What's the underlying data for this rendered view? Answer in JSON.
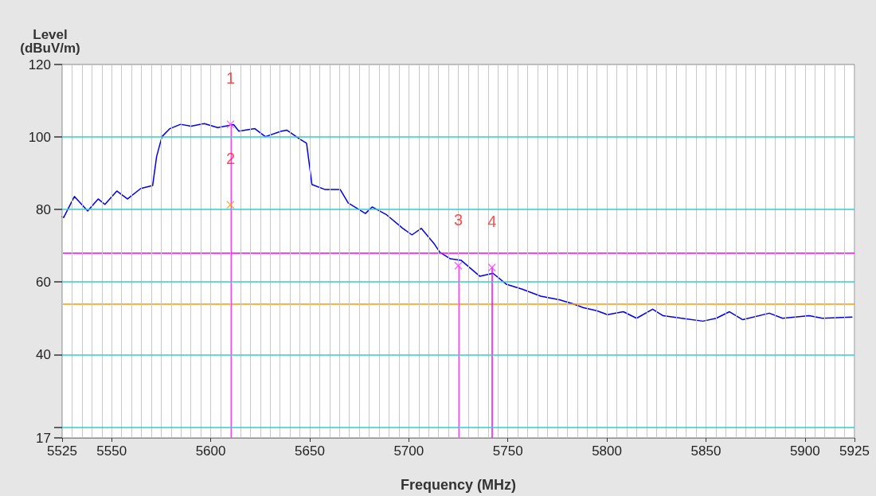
{
  "chart_data": {
    "type": "line",
    "xlabel": "Frequency (MHz)",
    "ylabel": "Level (dBuV/m)",
    "xlim": [
      5525,
      5925
    ],
    "xticks": [
      5525,
      {
        "value": 5530,
        "label": null
      },
      {
        "value": 5535,
        "label": null
      },
      {
        "value": 5540,
        "label": null
      },
      {
        "value": 5545,
        "label": null
      },
      5550,
      {
        "value": 5555,
        "label": null
      },
      {
        "value": 5560,
        "label": null
      },
      {
        "value": 5565,
        "label": null
      },
      {
        "value": 5570,
        "label": null
      },
      {
        "value": 5575,
        "label": null
      },
      {
        "value": 5580,
        "label": null
      },
      {
        "value": 5585,
        "label": null
      },
      {
        "value": 5590,
        "label": null
      },
      {
        "value": 5595,
        "label": null
      },
      5600,
      {
        "value": 5605,
        "label": null
      },
      {
        "value": 5610,
        "label": null
      },
      {
        "value": 5615,
        "label": null
      },
      {
        "value": 5620,
        "label": null
      },
      {
        "value": 5625,
        "label": null
      },
      {
        "value": 5630,
        "label": null
      },
      {
        "value": 5635,
        "label": null
      },
      {
        "value": 5640,
        "label": null
      },
      {
        "value": 5645,
        "label": null
      },
      5650,
      {
        "value": 5655,
        "label": null
      },
      {
        "value": 5660,
        "label": null
      },
      {
        "value": 5665,
        "label": null
      },
      {
        "value": 5670,
        "label": null
      },
      {
        "value": 5675,
        "label": null
      },
      {
        "value": 5680,
        "label": null
      },
      {
        "value": 5685,
        "label": null
      },
      {
        "value": 5690,
        "label": null
      },
      {
        "value": 5695,
        "label": null
      },
      5700,
      {
        "value": 5705,
        "label": null
      },
      {
        "value": 5710,
        "label": null
      },
      {
        "value": 5715,
        "label": null
      },
      {
        "value": 5720,
        "label": null
      },
      {
        "value": 5725,
        "label": null
      },
      {
        "value": 5730,
        "label": null
      },
      {
        "value": 5735,
        "label": null
      },
      {
        "value": 5740,
        "label": null
      },
      {
        "value": 5745,
        "label": null
      },
      5750,
      {
        "value": 5755,
        "label": null
      },
      {
        "value": 5760,
        "label": null
      },
      {
        "value": 5765,
        "label": null
      },
      {
        "value": 5770,
        "label": null
      },
      {
        "value": 5775,
        "label": null
      },
      {
        "value": 5780,
        "label": null
      },
      {
        "value": 5785,
        "label": null
      },
      {
        "value": 5790,
        "label": null
      },
      {
        "value": 5795,
        "label": null
      },
      5800,
      {
        "value": 5805,
        "label": null
      },
      {
        "value": 5810,
        "label": null
      },
      {
        "value": 5815,
        "label": null
      },
      {
        "value": 5820,
        "label": null
      },
      {
        "value": 5825,
        "label": null
      },
      {
        "value": 5830,
        "label": null
      },
      {
        "value": 5835,
        "label": null
      },
      {
        "value": 5840,
        "label": null
      },
      {
        "value": 5845,
        "label": null
      },
      5850,
      {
        "value": 5855,
        "label": null
      },
      {
        "value": 5860,
        "label": null
      },
      {
        "value": 5865,
        "label": null
      },
      {
        "value": 5870,
        "label": null
      },
      {
        "value": 5875,
        "label": null
      },
      {
        "value": 5880,
        "label": null
      },
      {
        "value": 5885,
        "label": null
      },
      {
        "value": 5890,
        "label": null
      },
      {
        "value": 5895,
        "label": null
      },
      5900,
      {
        "value": 5905,
        "label": null
      },
      {
        "value": 5910,
        "label": null
      },
      {
        "value": 5915,
        "label": null
      },
      {
        "value": 5920,
        "label": null
      },
      5925
    ],
    "ylim": [
      17,
      120
    ],
    "yticks": [
      17,
      {
        "value": 20,
        "label": null
      },
      40,
      60,
      80,
      100,
      120
    ],
    "grid": true,
    "series": [
      {
        "color": "#0000ee",
        "marker": "none",
        "line_style": "solid",
        "x": [
          5525,
          5525.8,
          5531.2,
          5537.9,
          5543.2,
          5546.6,
          5552.6,
          5558,
          5564.7,
          5570.7,
          5572.7,
          5575.4,
          5579.4,
          5584.8,
          5590.1,
          5596.8,
          5603.5,
          5611.6,
          5614.2,
          5622.3,
          5627.6,
          5635.7,
          5638.4,
          5645.1,
          5648.4,
          5651.1,
          5657.8,
          5665.4,
          5669.4,
          5678.1,
          5681.5,
          5688.9,
          5697,
          5701.6,
          5706.3,
          5713,
          5715.7,
          5721,
          5726.4,
          5735.8,
          5742.5,
          5749.2,
          5757.3,
          5766.6,
          5776,
          5782.8,
          5788.2,
          5794.9,
          5800.3,
          5808.3,
          5815,
          5823.1,
          5828.4,
          5837.8,
          5848.5,
          5855.2,
          5861.9,
          5868.6,
          5882,
          5888.7,
          5902.1,
          5908.8,
          5923.7
        ],
        "values": [
          78,
          77.8,
          83.6,
          79.6,
          82.9,
          81.4,
          85.1,
          82.9,
          85.8,
          86.6,
          94.6,
          100.1,
          102.3,
          103.5,
          103,
          103.7,
          102.6,
          103.4,
          101.6,
          102.3,
          100.1,
          101.6,
          101.9,
          99.4,
          98.3,
          86.9,
          85.5,
          85.5,
          81.8,
          78.9,
          80.7,
          78.5,
          74.8,
          73,
          74.8,
          70.4,
          68.2,
          66.4,
          66,
          61.6,
          62.4,
          59.4,
          58,
          56.1,
          55.1,
          54,
          52.9,
          52.1,
          51,
          51.8,
          50,
          52.5,
          50.7,
          50,
          49.2,
          50,
          51.8,
          49.6,
          51.4,
          50,
          50.7,
          50,
          50.3
        ]
      },
      {
        "type": "scatter",
        "marker": "cross",
        "x": [
          5610,
          5610,
          5725,
          5742
        ],
        "values": [
          103.5,
          81.3,
          64.5,
          64
        ],
        "colors": [
          "#ff33ff",
          "#ff9900",
          "#ff33ff",
          "#ff33ff"
        ]
      }
    ],
    "ref_lines": [
      {
        "axis": "y",
        "value": 68,
        "color": "#ff00ff"
      },
      {
        "axis": "y",
        "value": 54,
        "color": "#ff9900"
      },
      {
        "axis": "x",
        "value": 5610,
        "color": "#ff00ff"
      },
      {
        "axis": "x",
        "value": 5725,
        "color": "#ff00ff"
      },
      {
        "axis": "x",
        "value": 5742,
        "color": "#ff00ff"
      }
    ],
    "annotations": [
      {
        "text": "1",
        "x": 5610,
        "y": 103.5
      },
      {
        "text": "2",
        "x": 5610,
        "y": 81.3
      },
      {
        "text": "3",
        "x": 5725,
        "y": 64.5
      },
      {
        "text": "4",
        "x": 5742,
        "y": 64
      }
    ]
  }
}
